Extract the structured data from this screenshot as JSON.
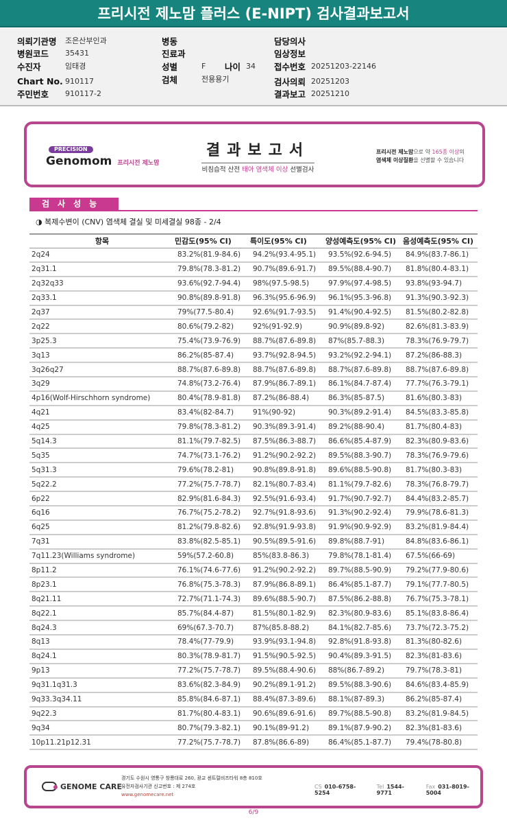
{
  "title": "프리시전 제노맘 플러스 (E-NIPT) 검사결과보고서",
  "info": {
    "col1": [
      {
        "k": "의뢰기관명",
        "v": "조은산부인과"
      },
      {
        "k": "병원코드",
        "v": "35431"
      },
      {
        "k": "수진자",
        "v": "임태경"
      },
      {
        "k": "Chart No.",
        "v": "910117"
      },
      {
        "k": "주민번호",
        "v": "910117-2"
      }
    ],
    "col2": [
      {
        "k": "병동",
        "v": ""
      },
      {
        "k": "진료과",
        "v": ""
      },
      {
        "k": "성별",
        "v": "F"
      },
      {
        "k": "검체",
        "v": "전용용기"
      }
    ],
    "age_label": "나이",
    "age": "34",
    "col3": [
      {
        "k": "담당의사",
        "v": ""
      },
      {
        "k": "임상정보",
        "v": ""
      },
      {
        "k": "접수번호",
        "v": "20251203-22146"
      },
      {
        "k": "검사의뢰",
        "v": "20251203"
      },
      {
        "k": "결과보고",
        "v": "20251210"
      }
    ]
  },
  "banner": {
    "precision": "PRECISION",
    "brand": "Genomom",
    "brand_kr": "프리시전 제노맘",
    "title": "결과보고서",
    "sub_a": "비침습적 산전 ",
    "sub_b": "태아 염색체 이상",
    "sub_c": " 선별검사",
    "right_a": "프리시전 제노맘",
    "right_b": "으로 약 ",
    "right_c": "165종 이상",
    "right_d": "의",
    "right_e": "염색체 이상질환",
    "right_f": "을 선별할 수 있습니다"
  },
  "section": "검사성능",
  "subtitle": "◑ 복제수변이 (CNV) 염색체 결실 및 미세결실 98종 - 2/4",
  "table": {
    "headers": [
      "항목",
      "민감도(95% CI)",
      "특이도(95% CI)",
      "양성예측도(95% CI)",
      "음성예측도(95% CI)"
    ],
    "rows": [
      [
        "2q24",
        "83.2%(81.9-84.6)",
        "94.2%(93.4-95.1)",
        "93.5%(92.6-94.5)",
        "84.9%(83.7-86.1)"
      ],
      [
        "2q31.1",
        "79.8%(78.3-81.2)",
        "90.7%(89.6-91.7)",
        "89.5%(88.4-90.7)",
        "81.8%(80.4-83.1)"
      ],
      [
        "2q32q33",
        "93.6%(92.7-94.4)",
        "98%(97.5-98.5)",
        "97.9%(97.4-98.5)",
        "93.8%(93-94.7)"
      ],
      [
        "2q33.1",
        "90.8%(89.8-91.8)",
        "96.3%(95.6-96.9)",
        "96.1%(95.3-96.8)",
        "91.3%(90.3-92.3)"
      ],
      [
        "2q37",
        "79%(77.5-80.4)",
        "92.6%(91.7-93.5)",
        "91.4%(90.4-92.5)",
        "81.5%(80.2-82.8)"
      ],
      [
        "2q22",
        "80.6%(79.2-82)",
        "92%(91-92.9)",
        "90.9%(89.8-92)",
        "82.6%(81.3-83.9)"
      ],
      [
        "3p25.3",
        "75.4%(73.9-76.9)",
        "88.7%(87.6-89.8)",
        "87%(85.7-88.3)",
        "78.3%(76.9-79.7)"
      ],
      [
        "3q13",
        "86.2%(85-87.4)",
        "93.7%(92.8-94.5)",
        "93.2%(92.2-94.1)",
        "87.2%(86-88.3)"
      ],
      [
        "3q26q27",
        "88.7%(87.6-89.8)",
        "88.7%(87.6-89.8)",
        "88.7%(87.6-89.8)",
        "88.7%(87.6-89.8)"
      ],
      [
        "3q29",
        "74.8%(73.2-76.4)",
        "87.9%(86.7-89.1)",
        "86.1%(84.7-87.4)",
        "77.7%(76.3-79.1)"
      ],
      [
        "4p16(Wolf-Hirschhorn syndrome)",
        "80.4%(78.9-81.8)",
        "87.2%(86-88.4)",
        "86.3%(85-87.5)",
        "81.6%(80.3-83)"
      ],
      [
        "4q21",
        "83.4%(82-84.7)",
        "91%(90-92)",
        "90.3%(89.2-91.4)",
        "84.5%(83.3-85.8)"
      ],
      [
        "4q25",
        "79.8%(78.3-81.2)",
        "90.3%(89.3-91.4)",
        "89.2%(88-90.4)",
        "81.7%(80.4-83)"
      ],
      [
        "5q14.3",
        "81.1%(79.7-82.5)",
        "87.5%(86.3-88.7)",
        "86.6%(85.4-87.9)",
        "82.3%(80.9-83.6)"
      ],
      [
        "5q35",
        "74.7%(73.1-76.2)",
        "91.2%(90.2-92.2)",
        "89.5%(88.3-90.7)",
        "78.3%(76.9-79.6)"
      ],
      [
        "5q31.3",
        "79.6%(78.2-81)",
        "90.8%(89.8-91.8)",
        "89.6%(88.5-90.8)",
        "81.7%(80.3-83)"
      ],
      [
        "5q22.2",
        "77.2%(75.7-78.7)",
        "82.1%(80.7-83.4)",
        "81.1%(79.7-82.6)",
        "78.3%(76.8-79.7)"
      ],
      [
        "6p22",
        "82.9%(81.6-84.3)",
        "92.5%(91.6-93.4)",
        "91.7%(90.7-92.7)",
        "84.4%(83.2-85.7)"
      ],
      [
        "6q16",
        "76.7%(75.2-78.2)",
        "92.7%(91.8-93.6)",
        "91.3%(90.2-92.4)",
        "79.9%(78.6-81.3)"
      ],
      [
        "6q25",
        "81.2%(79.8-82.6)",
        "92.8%(91.9-93.8)",
        "91.9%(90.9-92.9)",
        "83.2%(81.9-84.4)"
      ],
      [
        "7q31",
        "83.8%(82.5-85.1)",
        "90.5%(89.5-91.6)",
        "89.8%(88.7-91)",
        "84.8%(83.6-86.1)"
      ],
      [
        "7q11.23(Williams syndrome)",
        "59%(57.2-60.8)",
        "85%(83.8-86.3)",
        "79.8%(78.1-81.4)",
        "67.5%(66-69)"
      ],
      [
        "8p11.2",
        "76.1%(74.6-77.6)",
        "91.2%(90.2-92.2)",
        "89.7%(88.5-90.9)",
        "79.2%(77.9-80.6)"
      ],
      [
        "8p23.1",
        "76.8%(75.3-78.3)",
        "87.9%(86.8-89.1)",
        "86.4%(85.1-87.7)",
        "79.1%(77.7-80.5)"
      ],
      [
        "8q21.11",
        "72.7%(71.1-74.3)",
        "89.6%(88.5-90.7)",
        "87.5%(86.2-88.8)",
        "76.7%(75.3-78.1)"
      ],
      [
        "8q22.1",
        "85.7%(84.4-87)",
        "81.5%(80.1-82.9)",
        "82.3%(80.9-83.6)",
        "85.1%(83.8-86.4)"
      ],
      [
        "8q24.3",
        "69%(67.3-70.7)",
        "87%(85.8-88.2)",
        "84.1%(82.7-85.6)",
        "73.7%(72.3-75.2)"
      ],
      [
        "8q13",
        "78.4%(77-79.9)",
        "93.9%(93.1-94.8)",
        "92.8%(91.8-93.8)",
        "81.3%(80-82.6)"
      ],
      [
        "8q24.1",
        "80.3%(78.9-81.7)",
        "91.5%(90.5-92.5)",
        "90.4%(89.3-91.5)",
        "82.3%(81-83.6)"
      ],
      [
        "9p13",
        "77.2%(75.7-78.7)",
        "89.5%(88.4-90.6)",
        "88%(86.7-89.2)",
        "79.7%(78.3-81)"
      ],
      [
        "9q31.1q31.3",
        "83.6%(82.3-84.9)",
        "90.2%(89.1-91.2)",
        "89.5%(88.3-90.6)",
        "84.6%(83.4-85.9)"
      ],
      [
        "9q33.3q34.11",
        "85.8%(84.6-87.1)",
        "88.4%(87.3-89.6)",
        "88.1%(87-89.3)",
        "86.2%(85-87.4)"
      ],
      [
        "9q22.3",
        "81.7%(80.4-83.1)",
        "90.6%(89.6-91.6)",
        "89.7%(88.5-90.8)",
        "83.2%(81.9-84.5)"
      ],
      [
        "9q34",
        "80.7%(79.3-82.1)",
        "90.1%(89-91.2)",
        "89.1%(87.9-90.2)",
        "82.3%(81-83.6)"
      ],
      [
        "10p11.21p12.31",
        "77.2%(75.7-78.7)",
        "87.8%(86.6-89)",
        "86.4%(85.1-87.7)",
        "79.4%(78-80.8)"
      ]
    ]
  },
  "footer": {
    "company": "GENOME CARE",
    "addr1": "경기도 수원시 영통구 창룡대로 260, 광교 센트럴비즈타워 8층 810호",
    "addr2": "유전자검사기관 신고번호 : 제 274호",
    "url": "www.genomecare.net",
    "cs_label": "CS",
    "cs": "010-6758-5254",
    "tel_label": "Tel",
    "tel": "1544-9771",
    "fax_label": "Fax",
    "fax": "031-8019-5004"
  },
  "page": "6/9",
  "colors": {
    "teal": "#17857e",
    "magenta": "#c8398f",
    "border": "#b8468e"
  }
}
